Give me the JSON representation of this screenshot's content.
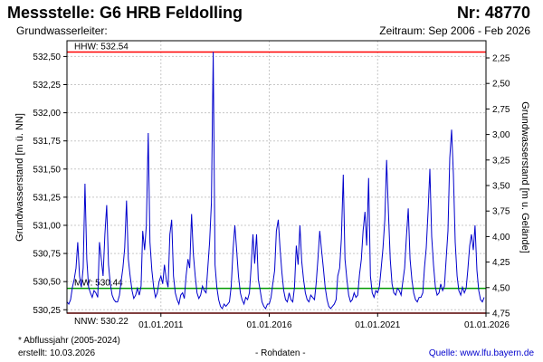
{
  "header": {
    "title": "Messstelle: G6 HRB Feldolling",
    "station_no": "Nr: 48770",
    "aquifer": "Grundwasserleiter:",
    "period": "Zeitraum: Sep 2006 - Feb 2026"
  },
  "footer": {
    "footnote": "* Abflussjahr (2005-2024)",
    "created": "erstellt:  10.03.2026",
    "rawdata": "- Rohdaten -",
    "source": "Quelle: www.lfu.bayern.de"
  },
  "colors": {
    "series": "#0000cc",
    "hhw": "#ff0000",
    "nnw": "#ff0000",
    "mw": "#009900",
    "grid": "#c8c8c8",
    "source_link": "#0000cc"
  },
  "chart_data": {
    "type": "line",
    "ylabel": "Grundwasserstand [m ü. NN]",
    "ylabel_right": "Grundwasserstand [m u. Gelände]",
    "ylim": [
      530.22,
      532.64
    ],
    "yticks": [
      "532,50",
      "532,25",
      "532,00",
      "531,75",
      "531,50",
      "531,25",
      "531,00",
      "530,75",
      "530,50",
      "530,25"
    ],
    "ytick_values": [
      532.5,
      532.25,
      532.0,
      531.75,
      531.5,
      531.25,
      531.0,
      530.75,
      530.5,
      530.25
    ],
    "yticks_right": [
      "2,25",
      "2,50",
      "2,75",
      "3,00",
      "3,25",
      "3,50",
      "3,75",
      "4,00",
      "4,25",
      "4,50",
      "4,75"
    ],
    "ytick_right_values": [
      2.25,
      2.5,
      2.75,
      3.0,
      3.25,
      3.5,
      3.75,
      4.0,
      4.25,
      4.5,
      4.75
    ],
    "xlim": [
      "2006-09-01",
      "2026-01-01"
    ],
    "xticks": [
      "01.01.2011",
      "01.01.2016",
      "01.01.2021",
      "01.01.2026"
    ],
    "xtick_values": [
      "2011-01-01",
      "2016-01-01",
      "2021-01-01",
      "2026-01-01"
    ],
    "grid": true,
    "reference_lines": [
      {
        "label": "HHW: 532.54",
        "value": 532.54
      },
      {
        "label": "MW: 530.44",
        "value": 530.44
      },
      {
        "label": "NNW: 530.22",
        "value": 530.22
      }
    ],
    "series": [
      {
        "x": [
          "2006-09-01",
          "2006-10-01",
          "2006-11-01",
          "2006-12-01",
          "2007-01-01",
          "2007-02-01",
          "2007-03-01",
          "2007-04-01",
          "2007-05-01",
          "2007-06-01",
          "2007-07-01",
          "2007-08-01",
          "2007-09-01",
          "2007-10-01",
          "2007-11-01",
          "2007-12-01",
          "2008-01-01",
          "2008-02-01",
          "2008-03-01",
          "2008-04-01",
          "2008-05-01",
          "2008-06-01",
          "2008-07-01",
          "2008-08-01",
          "2008-09-01",
          "2008-10-01",
          "2008-11-01",
          "2008-12-01",
          "2009-01-01",
          "2009-02-01",
          "2009-03-01",
          "2009-04-01",
          "2009-05-01",
          "2009-06-01",
          "2009-07-01",
          "2009-08-01",
          "2009-09-01",
          "2009-10-01",
          "2009-11-01",
          "2009-12-01",
          "2010-01-01",
          "2010-02-01",
          "2010-03-01",
          "2010-04-01",
          "2010-05-01",
          "2010-06-01",
          "2010-07-01",
          "2010-08-01",
          "2010-09-01",
          "2010-10-01",
          "2010-11-01",
          "2010-12-01",
          "2011-01-01",
          "2011-02-01",
          "2011-03-01",
          "2011-04-01",
          "2011-05-01",
          "2011-06-01",
          "2011-07-01",
          "2011-08-01",
          "2011-09-01",
          "2011-10-01",
          "2011-11-01",
          "2011-12-01",
          "2012-01-01",
          "2012-02-01",
          "2012-03-01",
          "2012-04-01",
          "2012-05-01",
          "2012-06-01",
          "2012-07-01",
          "2012-08-01",
          "2012-09-01",
          "2012-10-01",
          "2012-11-01",
          "2012-12-01",
          "2013-01-01",
          "2013-02-01",
          "2013-03-01",
          "2013-04-01",
          "2013-05-01",
          "2013-06-01",
          "2013-07-01",
          "2013-08-01",
          "2013-09-01",
          "2013-10-01",
          "2013-11-01",
          "2013-12-01",
          "2014-01-01",
          "2014-02-01",
          "2014-03-01",
          "2014-04-01",
          "2014-05-01",
          "2014-06-01",
          "2014-07-01",
          "2014-08-01",
          "2014-09-01",
          "2014-10-01",
          "2014-11-01",
          "2014-12-01",
          "2015-01-01",
          "2015-02-01",
          "2015-03-01",
          "2015-04-01",
          "2015-05-01",
          "2015-06-01",
          "2015-07-01",
          "2015-08-01",
          "2015-09-01",
          "2015-10-01",
          "2015-11-01",
          "2015-12-01",
          "2016-01-01",
          "2016-02-01",
          "2016-03-01",
          "2016-04-01",
          "2016-05-01",
          "2016-06-01",
          "2016-07-01",
          "2016-08-01",
          "2016-09-01",
          "2016-10-01",
          "2016-11-01",
          "2016-12-01",
          "2017-01-01",
          "2017-02-01",
          "2017-03-01",
          "2017-04-01",
          "2017-05-01",
          "2017-06-01",
          "2017-07-01",
          "2017-08-01",
          "2017-09-01",
          "2017-10-01",
          "2017-11-01",
          "2017-12-01",
          "2018-01-01",
          "2018-02-01",
          "2018-03-01",
          "2018-04-01",
          "2018-05-01",
          "2018-06-01",
          "2018-07-01",
          "2018-08-01",
          "2018-09-01",
          "2018-10-01",
          "2018-11-01",
          "2018-12-01",
          "2019-01-01",
          "2019-02-01",
          "2019-03-01",
          "2019-04-01",
          "2019-05-01",
          "2019-06-01",
          "2019-07-01",
          "2019-08-01",
          "2019-09-01",
          "2019-10-01",
          "2019-11-01",
          "2019-12-01",
          "2020-01-01",
          "2020-02-01",
          "2020-03-01",
          "2020-04-01",
          "2020-05-01",
          "2020-06-01",
          "2020-07-01",
          "2020-08-01",
          "2020-09-01",
          "2020-10-01",
          "2020-11-01",
          "2020-12-01",
          "2021-01-01",
          "2021-02-01",
          "2021-03-01",
          "2021-04-01",
          "2021-05-01",
          "2021-06-01",
          "2021-07-01",
          "2021-08-01",
          "2021-09-01",
          "2021-10-01",
          "2021-11-01",
          "2021-12-01",
          "2022-01-01",
          "2022-02-01",
          "2022-03-01",
          "2022-04-01",
          "2022-05-01",
          "2022-06-01",
          "2022-07-01",
          "2022-08-01",
          "2022-09-01",
          "2022-10-01",
          "2022-11-01",
          "2022-12-01",
          "2023-01-01",
          "2023-02-01",
          "2023-03-01",
          "2023-04-01",
          "2023-05-01",
          "2023-06-01",
          "2023-07-01",
          "2023-08-01",
          "2023-09-01",
          "2023-10-01",
          "2023-11-01",
          "2023-12-01",
          "2024-01-01",
          "2024-02-01",
          "2024-03-01",
          "2024-04-01",
          "2024-05-01",
          "2024-06-01",
          "2024-07-01",
          "2024-08-01",
          "2024-09-01",
          "2024-10-01",
          "2024-11-01",
          "2024-12-01",
          "2025-01-01",
          "2025-02-01",
          "2025-03-01",
          "2025-04-01",
          "2025-05-01",
          "2025-06-01",
          "2025-07-01",
          "2025-08-01",
          "2025-09-01",
          "2025-10-01",
          "2025-11-01",
          "2025-12-01"
        ],
        "y": [
          530.32,
          530.3,
          530.34,
          530.45,
          530.52,
          530.62,
          530.85,
          530.55,
          530.45,
          530.62,
          531.37,
          530.7,
          530.45,
          530.4,
          530.36,
          530.42,
          530.4,
          530.36,
          530.85,
          530.7,
          530.55,
          530.92,
          531.18,
          530.65,
          530.48,
          530.38,
          530.34,
          530.32,
          530.32,
          530.38,
          530.5,
          530.62,
          530.8,
          531.22,
          530.7,
          530.55,
          530.42,
          530.35,
          530.38,
          530.44,
          530.38,
          530.46,
          530.95,
          530.78,
          531.0,
          531.82,
          530.85,
          530.6,
          530.45,
          530.36,
          530.4,
          530.5,
          530.55,
          530.48,
          530.65,
          530.52,
          530.45,
          530.92,
          531.05,
          530.55,
          530.4,
          530.34,
          530.3,
          530.38,
          530.4,
          530.35,
          530.55,
          530.7,
          530.62,
          531.1,
          530.75,
          530.55,
          530.4,
          530.35,
          530.38,
          530.46,
          530.42,
          530.4,
          530.62,
          530.85,
          531.2,
          532.54,
          530.65,
          530.45,
          530.34,
          530.28,
          530.26,
          530.3,
          530.28,
          530.3,
          530.32,
          530.46,
          530.78,
          531.0,
          530.78,
          530.55,
          530.4,
          530.34,
          530.3,
          530.36,
          530.34,
          530.4,
          530.62,
          530.92,
          530.66,
          530.92,
          530.52,
          530.42,
          530.32,
          530.28,
          530.26,
          530.3,
          530.3,
          530.36,
          530.48,
          530.6,
          530.95,
          531.05,
          530.8,
          530.58,
          530.42,
          530.34,
          530.32,
          530.4,
          530.34,
          530.32,
          530.45,
          530.82,
          530.65,
          531.0,
          530.68,
          530.52,
          530.4,
          530.34,
          530.32,
          530.38,
          530.36,
          530.34,
          530.48,
          530.7,
          530.95,
          530.78,
          530.62,
          530.45,
          530.34,
          530.28,
          530.26,
          530.28,
          530.3,
          530.34,
          530.55,
          530.62,
          530.88,
          531.45,
          530.7,
          530.52,
          530.38,
          530.32,
          530.34,
          530.4,
          530.36,
          530.38,
          530.56,
          530.7,
          530.95,
          531.12,
          530.82,
          531.42,
          530.55,
          530.4,
          530.36,
          530.42,
          530.4,
          530.46,
          530.62,
          530.8,
          531.05,
          531.58,
          531.12,
          530.7,
          530.48,
          530.4,
          530.38,
          530.44,
          530.42,
          530.38,
          530.5,
          530.62,
          530.9,
          531.15,
          530.7,
          530.52,
          530.4,
          530.34,
          530.32,
          530.36,
          530.36,
          530.4,
          530.62,
          530.8,
          531.12,
          531.5,
          530.9,
          530.65,
          530.45,
          530.38,
          530.4,
          530.48,
          530.42,
          530.46,
          530.7,
          530.95,
          531.6,
          531.85,
          531.45,
          530.85,
          530.55,
          530.42,
          530.38,
          530.45,
          530.4,
          530.44,
          530.6,
          530.82,
          530.92,
          530.78,
          531.0,
          530.6,
          530.42,
          530.34,
          530.32,
          530.36
        ]
      }
    ]
  }
}
